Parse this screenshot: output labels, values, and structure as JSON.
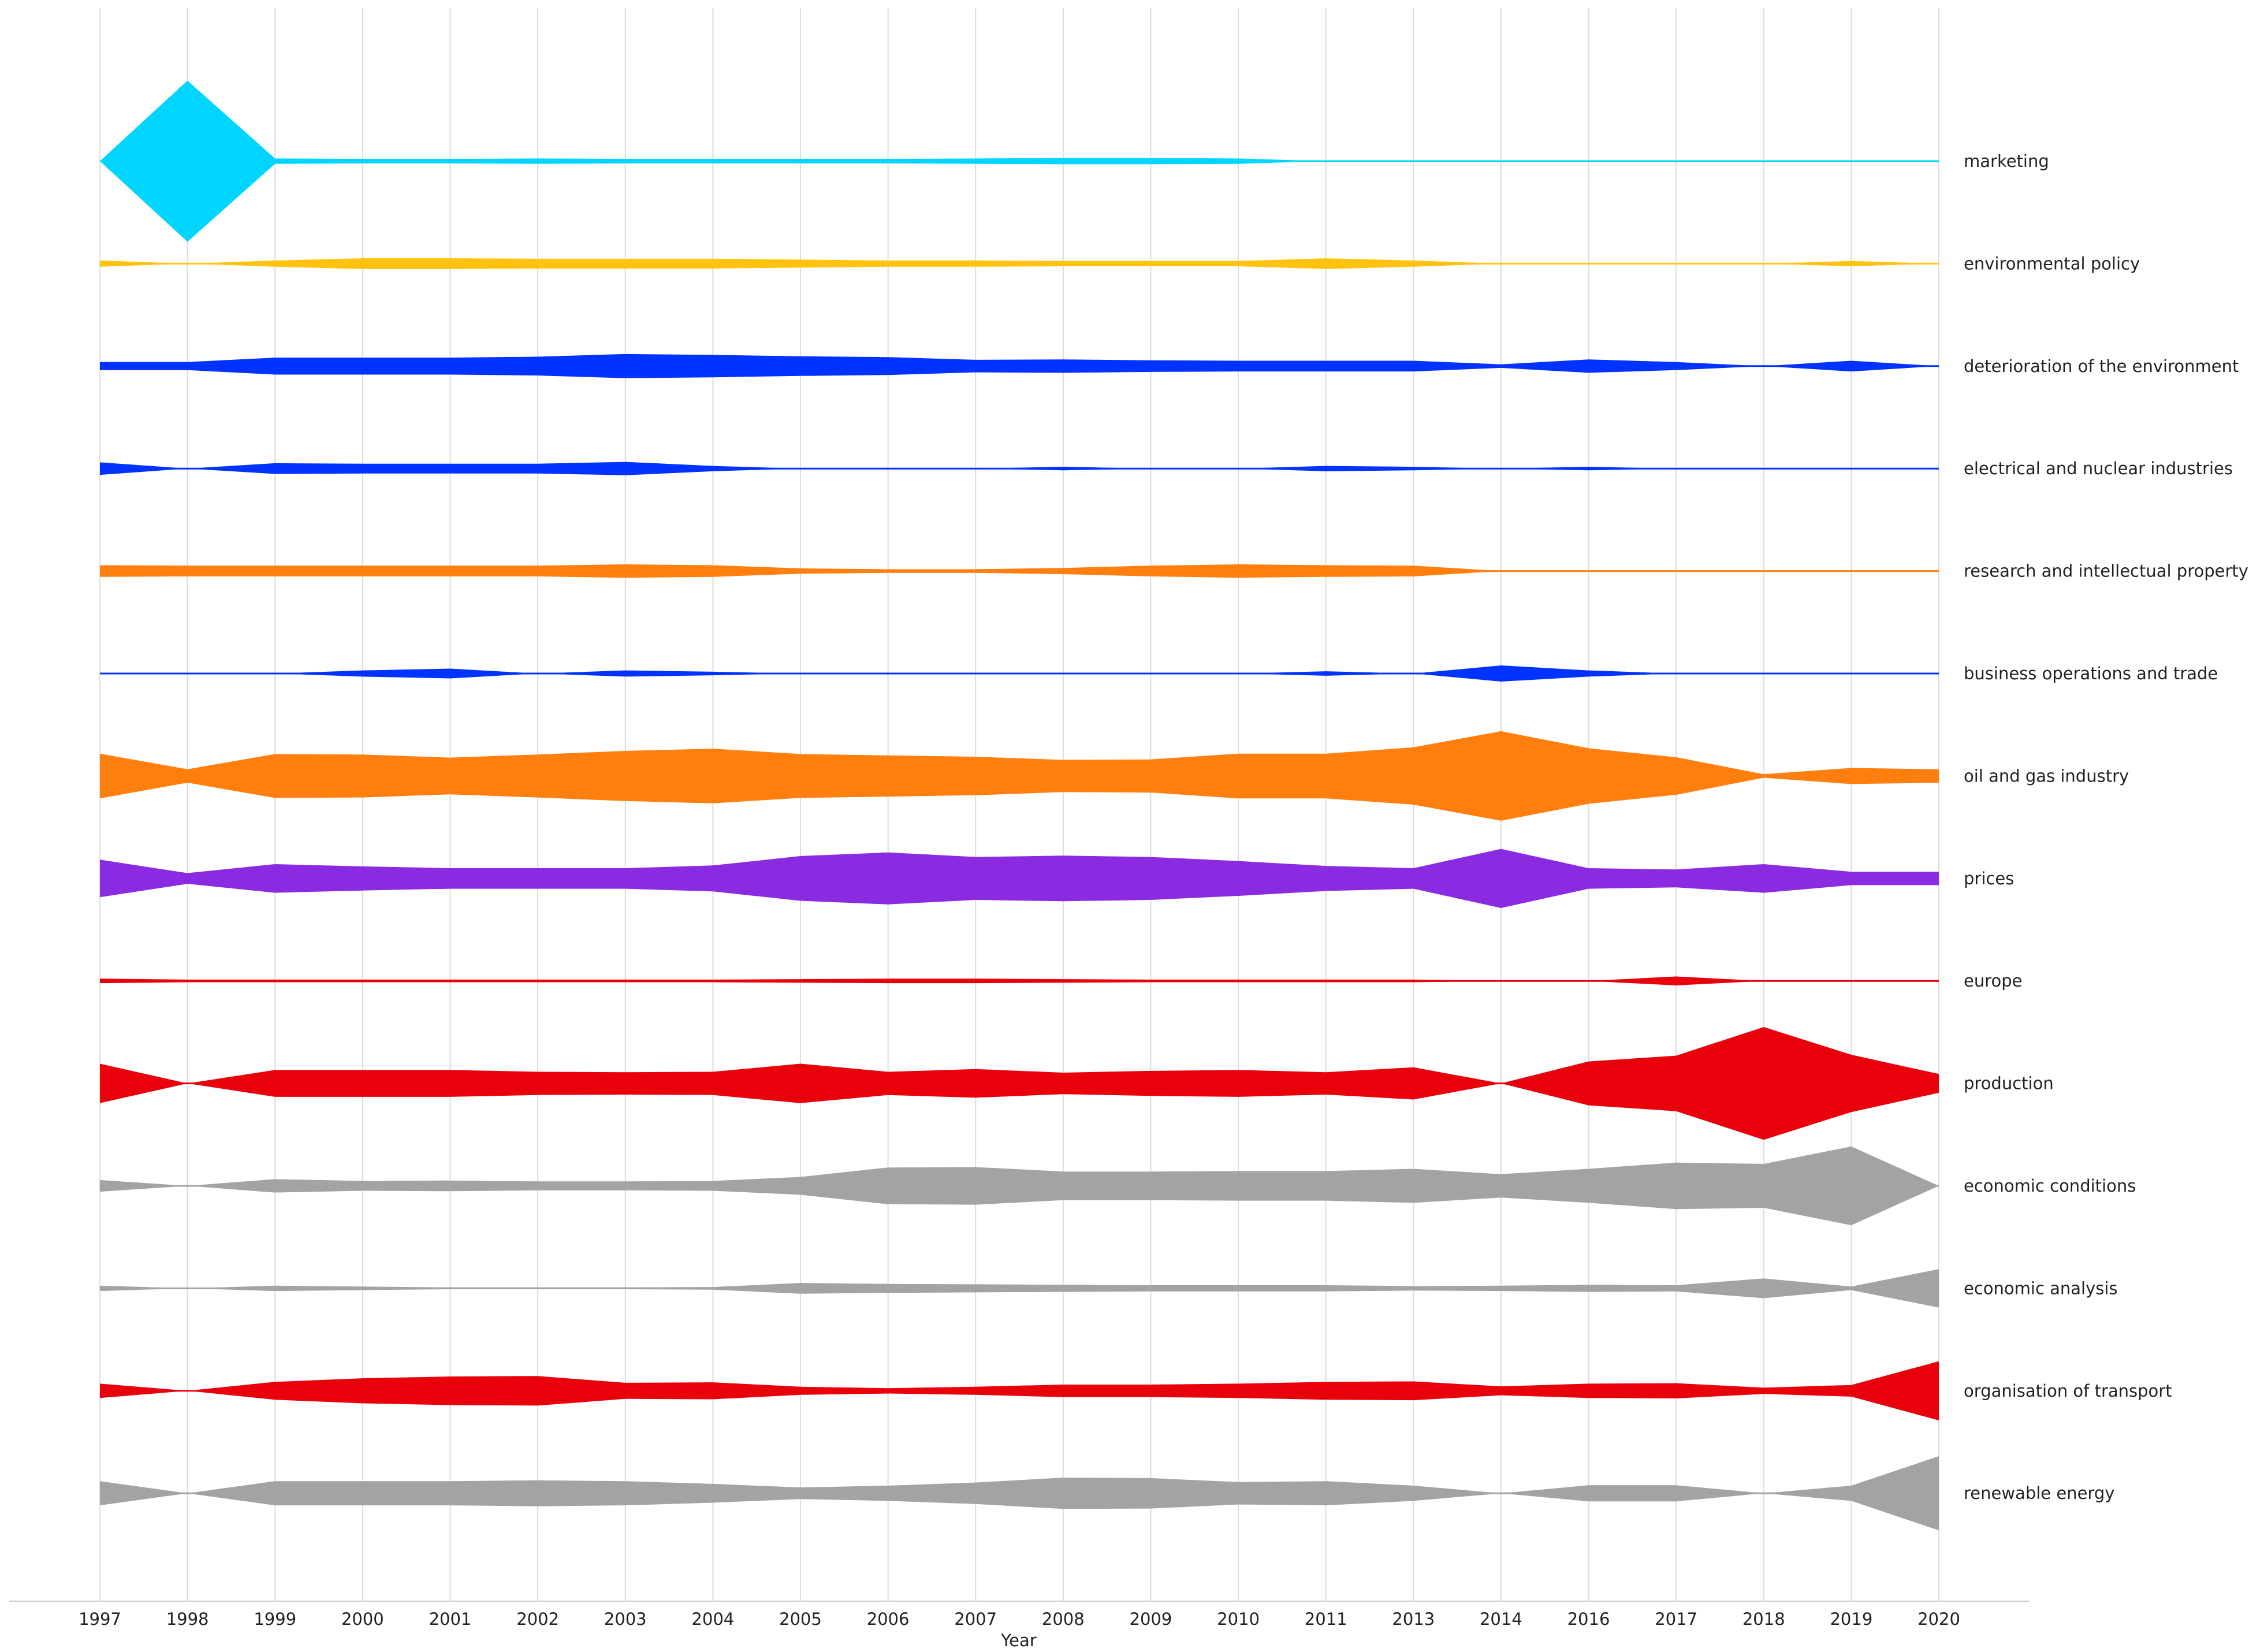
{
  "chart_data": {
    "type": "area",
    "subtype": "streamline-ribbons",
    "xlabel": "Year",
    "years": [
      "1997",
      "1998",
      "1999",
      "2000",
      "2001",
      "2002",
      "2003",
      "2004",
      "2005",
      "2006",
      "2007",
      "2008",
      "2009",
      "2010",
      "2011",
      "2013",
      "2014",
      "2016",
      "2017",
      "2018",
      "2019",
      "2020"
    ],
    "grid": true,
    "gridlines": "vertical",
    "legend": "labels at right end of each ribbon",
    "series": [
      {
        "name": "marketing",
        "color": "#00d5ff",
        "values": [
          0,
          9.0,
          0.3,
          0.25,
          0.25,
          0.3,
          0.25,
          0.25,
          0.25,
          0.25,
          0.3,
          0.35,
          0.35,
          0.3,
          0,
          0,
          0,
          0,
          0,
          0,
          0,
          0
        ]
      },
      {
        "name": "environmental policy",
        "color": "#ffc20e",
        "values": [
          0.35,
          0,
          0.35,
          0.6,
          0.6,
          0.55,
          0.55,
          0.55,
          0.45,
          0.35,
          0.35,
          0.3,
          0.3,
          0.3,
          0.6,
          0.35,
          0,
          0,
          0,
          0,
          0.3,
          0
        ]
      },
      {
        "name": "deterioration of the environment",
        "color": "#0033ff",
        "values": [
          0.45,
          0.45,
          0.95,
          0.95,
          0.95,
          1.05,
          1.35,
          1.25,
          1.1,
          1.0,
          0.7,
          0.75,
          0.65,
          0.6,
          0.6,
          0.6,
          0.2,
          0.75,
          0.45,
          0,
          0.6,
          0
        ]
      },
      {
        "name": "electrical and nuclear industries",
        "color": "#0033ff",
        "values": [
          0.7,
          0,
          0.6,
          0.55,
          0.55,
          0.55,
          0.75,
          0.3,
          0,
          0,
          0,
          0.2,
          0,
          0,
          0.3,
          0.2,
          0,
          0.2,
          0,
          0,
          0,
          0
        ]
      },
      {
        "name": "research and intellectual property",
        "color": "#ff7f0e",
        "values": [
          0.65,
          0.6,
          0.6,
          0.6,
          0.6,
          0.6,
          0.75,
          0.65,
          0.3,
          0.2,
          0.2,
          0.35,
          0.6,
          0.75,
          0.65,
          0.6,
          0,
          0,
          0,
          0,
          0,
          0
        ]
      },
      {
        "name": "business operations and trade",
        "color": "#0033ff",
        "values": [
          0,
          0,
          0,
          0.35,
          0.55,
          0,
          0.35,
          0.2,
          0,
          0,
          0,
          0,
          0,
          0,
          0.25,
          0,
          0.9,
          0.35,
          0,
          0,
          0,
          0
        ]
      },
      {
        "name": "oil and gas industry",
        "color": "#ff7f0e",
        "values": [
          2.5,
          0.75,
          2.45,
          2.4,
          2.05,
          2.4,
          2.8,
          3.05,
          2.45,
          2.3,
          2.15,
          1.8,
          1.85,
          2.5,
          2.5,
          3.2,
          5.0,
          3.1,
          2.1,
          0.2,
          0.9,
          0.75
        ]
      },
      {
        "name": "prices",
        "color": "#8a2be2",
        "values": [
          2.1,
          0.6,
          1.6,
          1.35,
          1.15,
          1.15,
          1.15,
          1.45,
          2.5,
          2.9,
          2.4,
          2.55,
          2.4,
          1.95,
          1.4,
          1.15,
          3.3,
          1.15,
          1.0,
          1.6,
          0.75,
          0.75
        ]
      },
      {
        "name": "europe",
        "color": "#e8000b",
        "values": [
          0.25,
          0.15,
          0.15,
          0.15,
          0.15,
          0.15,
          0.15,
          0.15,
          0.2,
          0.25,
          0.25,
          0.2,
          0.15,
          0.15,
          0.15,
          0.15,
          0,
          0,
          0.5,
          0,
          0,
          0
        ]
      },
      {
        "name": "production",
        "color": "#e8000b",
        "values": [
          2.2,
          0,
          1.5,
          1.5,
          1.5,
          1.3,
          1.25,
          1.3,
          2.2,
          1.3,
          1.6,
          1.2,
          1.4,
          1.5,
          1.25,
          1.8,
          0,
          2.45,
          3.1,
          6.3,
          3.2,
          1.05
        ]
      },
      {
        "name": "economic conditions",
        "color": "#a3a3a3",
        "values": [
          0.65,
          0,
          0.75,
          0.55,
          0.6,
          0.5,
          0.5,
          0.55,
          1.0,
          2.05,
          2.1,
          1.6,
          1.6,
          1.65,
          1.65,
          1.9,
          1.3,
          1.9,
          2.6,
          2.45,
          4.4,
          0
        ]
      },
      {
        "name": "economic analysis",
        "color": "#a3a3a3",
        "values": [
          0.3,
          0,
          0.3,
          0.2,
          0.1,
          0.1,
          0.1,
          0.15,
          0.6,
          0.5,
          0.45,
          0.4,
          0.35,
          0.35,
          0.35,
          0.25,
          0.3,
          0.4,
          0.35,
          1.1,
          0.2,
          2.15
        ]
      },
      {
        "name": "organisation of transport",
        "color": "#e8000b",
        "values": [
          0.8,
          0,
          1.0,
          1.4,
          1.6,
          1.65,
          0.9,
          0.95,
          0.45,
          0.3,
          0.45,
          0.7,
          0.7,
          0.8,
          1.0,
          1.05,
          0.5,
          0.8,
          0.85,
          0.35,
          0.65,
          3.3
        ]
      },
      {
        "name": "renewable energy",
        "color": "#a3a3a3",
        "values": [
          1.35,
          0,
          1.35,
          1.35,
          1.35,
          1.45,
          1.35,
          1.05,
          0.65,
          0.85,
          1.2,
          1.75,
          1.7,
          1.25,
          1.35,
          0.85,
          0,
          0.9,
          0.9,
          0,
          0.85,
          4.15
        ]
      }
    ]
  }
}
